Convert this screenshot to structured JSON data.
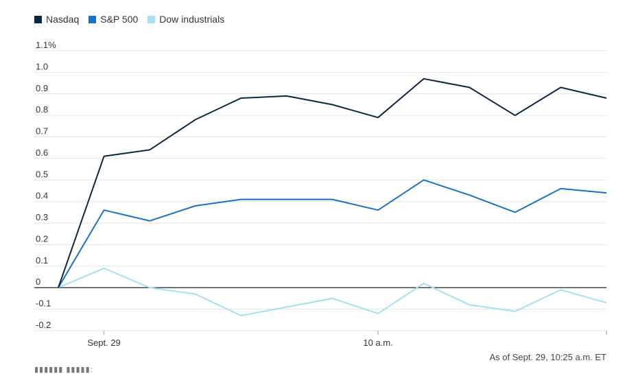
{
  "chart_data": {
    "type": "line",
    "title": "",
    "xlabel": "",
    "ylabel": "",
    "ylim": [
      -0.2,
      1.1
    ],
    "yticks": [
      {
        "value": 1.1,
        "label": "1.1%"
      },
      {
        "value": 1.0,
        "label": "1.0"
      },
      {
        "value": 0.9,
        "label": "0.9"
      },
      {
        "value": 0.8,
        "label": "0.8"
      },
      {
        "value": 0.7,
        "label": "0.7"
      },
      {
        "value": 0.6,
        "label": "0.6"
      },
      {
        "value": 0.5,
        "label": "0.5"
      },
      {
        "value": 0.4,
        "label": "0.4"
      },
      {
        "value": 0.3,
        "label": "0.3"
      },
      {
        "value": 0.2,
        "label": "0.2"
      },
      {
        "value": 0.1,
        "label": "0.1"
      },
      {
        "value": 0,
        "label": "0"
      },
      {
        "value": -0.1,
        "label": "-0.1"
      },
      {
        "value": -0.2,
        "label": "-0.2"
      }
    ],
    "xticks": [
      {
        "index": 1,
        "label": "Sept. 29"
      },
      {
        "index": 7,
        "label": "10 a.m."
      }
    ],
    "grid": true,
    "legend_position": "top-left",
    "series": [
      {
        "name": "Nasdaq",
        "color": "#0b2545",
        "values": [
          0,
          0.61,
          0.64,
          0.78,
          0.88,
          0.89,
          0.85,
          0.79,
          0.97,
          0.93,
          0.8,
          0.93,
          0.88
        ]
      },
      {
        "name": "S&P 500",
        "color": "#1a6fc9",
        "values": [
          0,
          0.36,
          0.31,
          0.38,
          0.41,
          0.41,
          0.41,
          0.36,
          0.5,
          0.43,
          0.35,
          0.46,
          0.44
        ]
      },
      {
        "name": "Dow industrials",
        "color": "#a3dff5",
        "values": [
          0,
          0.09,
          0,
          -0.03,
          -0.13,
          -0.09,
          -0.05,
          -0.12,
          0.02,
          -0.08,
          -0.11,
          -0.01,
          -0.07
        ]
      }
    ]
  },
  "note": "As of Sept. 29, 10:25 a.m. ET",
  "source": "▮▮▮▮▮▮ ▮▮▮▮▮:"
}
